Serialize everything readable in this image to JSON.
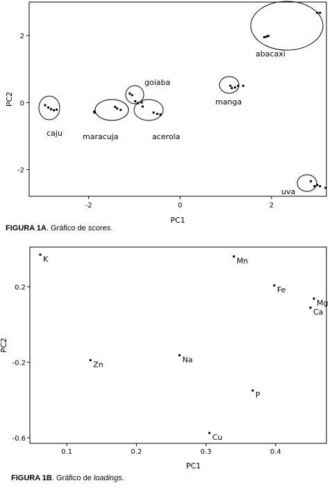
{
  "chart_data": [
    {
      "type": "scatter",
      "xlabel": "PC1",
      "ylabel": "PC2",
      "xlim": [
        -3.3,
        3.2
      ],
      "ylim": [
        -2.8,
        3.0
      ],
      "xticks": [
        -2,
        0,
        2
      ],
      "yticks": [
        -2,
        0,
        2
      ],
      "groups": [
        {
          "name": "caju",
          "points": [
            [
              -2.95,
              -0.08
            ],
            [
              -2.88,
              -0.15
            ],
            [
              -2.82,
              -0.2
            ],
            [
              -2.76,
              -0.23
            ],
            [
              -2.7,
              -0.21
            ]
          ]
        },
        {
          "name": "maracuja",
          "points": [
            [
              -1.88,
              -0.27
            ],
            [
              -1.87,
              -0.3
            ],
            [
              -1.42,
              -0.13
            ],
            [
              -1.38,
              -0.18
            ],
            [
              -1.3,
              -0.22
            ]
          ]
        },
        {
          "name": "goiaba",
          "points": [
            [
              -1.1,
              0.27
            ],
            [
              -1.05,
              0.22
            ],
            [
              -0.98,
              0.04
            ],
            [
              -0.92,
              -0.02
            ],
            [
              -0.84,
              0.0
            ]
          ]
        },
        {
          "name": "acerola",
          "points": [
            [
              -0.82,
              -0.12
            ],
            [
              -0.58,
              -0.3
            ],
            [
              -0.5,
              -0.34
            ],
            [
              -0.43,
              -0.36
            ]
          ]
        },
        {
          "name": "manga",
          "points": [
            [
              1.1,
              0.5
            ],
            [
              1.13,
              0.43
            ],
            [
              1.2,
              0.45
            ],
            [
              1.27,
              0.5
            ],
            [
              1.38,
              0.5
            ]
          ]
        },
        {
          "name": "abacaxi",
          "points": [
            [
              1.84,
              1.95
            ],
            [
              1.89,
              1.97
            ],
            [
              1.93,
              1.99
            ],
            [
              3.0,
              2.68
            ],
            [
              3.06,
              2.68
            ]
          ]
        },
        {
          "name": "uva",
          "points": [
            [
              2.86,
              -2.35
            ],
            [
              2.94,
              -2.5
            ],
            [
              3.0,
              -2.46
            ],
            [
              3.06,
              -2.5
            ],
            [
              3.18,
              -2.55
            ]
          ]
        }
      ]
    },
    {
      "type": "scatter",
      "xlabel": "PC1",
      "ylabel": "PC2",
      "xlim": [
        0.047,
        0.473
      ],
      "ylim": [
        -0.63,
        0.41
      ],
      "xticks": [
        0.1,
        0.2,
        0.3,
        0.4
      ],
      "yticks": [
        -0.6,
        -0.2,
        0.2
      ],
      "points": [
        {
          "label": "K",
          "x": 0.062,
          "y": 0.37
        },
        {
          "label": "Mn",
          "x": 0.34,
          "y": 0.36
        },
        {
          "label": "Fe",
          "x": 0.398,
          "y": 0.207
        },
        {
          "label": "Mg",
          "x": 0.455,
          "y": 0.137
        },
        {
          "label": "Ca",
          "x": 0.45,
          "y": 0.089
        },
        {
          "label": "Na",
          "x": 0.262,
          "y": -0.163
        },
        {
          "label": "Zn",
          "x": 0.134,
          "y": -0.189
        },
        {
          "label": "P",
          "x": 0.367,
          "y": -0.35
        },
        {
          "label": "Cu",
          "x": 0.305,
          "y": -0.575
        }
      ]
    }
  ],
  "captions": {
    "fig1a_bold": "FIGURA 1A",
    "fig1a_text": ". Gráfico de ",
    "fig1a_em": "scores",
    "fig1a_end": ".",
    "fig1b_bold": "FIGURA 1B",
    "fig1b_text": ". Gráfico de ",
    "fig1b_em": "loadings",
    "fig1b_end": "."
  }
}
